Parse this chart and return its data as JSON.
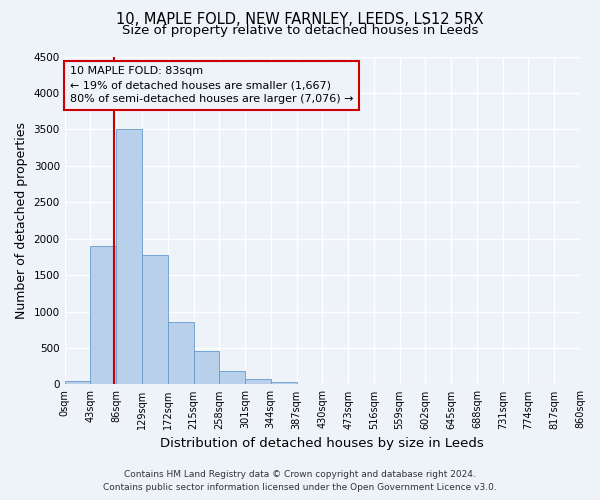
{
  "title_line1": "10, MAPLE FOLD, NEW FARNLEY, LEEDS, LS12 5RX",
  "title_line2": "Size of property relative to detached houses in Leeds",
  "xlabel": "Distribution of detached houses by size in Leeds",
  "ylabel": "Number of detached properties",
  "bar_values": [
    50,
    1900,
    3500,
    1780,
    850,
    460,
    185,
    75,
    35,
    0,
    0,
    0,
    0,
    0,
    0,
    0,
    0,
    0,
    0,
    0
  ],
  "bin_edges": [
    0,
    43,
    86,
    129,
    172,
    215,
    258,
    301,
    344,
    387,
    430,
    473,
    516,
    559,
    602,
    645,
    688,
    731,
    774,
    817,
    860
  ],
  "tick_labels": [
    "0sqm",
    "43sqm",
    "86sqm",
    "129sqm",
    "172sqm",
    "215sqm",
    "258sqm",
    "301sqm",
    "344sqm",
    "387sqm",
    "430sqm",
    "473sqm",
    "516sqm",
    "559sqm",
    "602sqm",
    "645sqm",
    "688sqm",
    "731sqm",
    "774sqm",
    "817sqm",
    "860sqm"
  ],
  "bar_color": "#b8d0ea",
  "bar_edge_color": "#6699cc",
  "property_line_x": 83,
  "property_line_color": "#cc0000",
  "annotation_line1": "10 MAPLE FOLD: 83sqm",
  "annotation_line2": "← 19% of detached houses are smaller (1,667)",
  "annotation_line3": "80% of semi-detached houses are larger (7,076) →",
  "annotation_box_color": "#cc0000",
  "ylim": [
    0,
    4500
  ],
  "yticks": [
    0,
    500,
    1000,
    1500,
    2000,
    2500,
    3000,
    3500,
    4000,
    4500
  ],
  "footer_line1": "Contains HM Land Registry data © Crown copyright and database right 2024.",
  "footer_line2": "Contains public sector information licensed under the Open Government Licence v3.0.",
  "background_color": "#eef2f9",
  "grid_color": "#ffffff",
  "title_fontsize": 10.5,
  "subtitle_fontsize": 9.5,
  "axis_label_fontsize": 9,
  "tick_fontsize": 7,
  "annotation_fontsize": 8,
  "footer_fontsize": 6.5
}
